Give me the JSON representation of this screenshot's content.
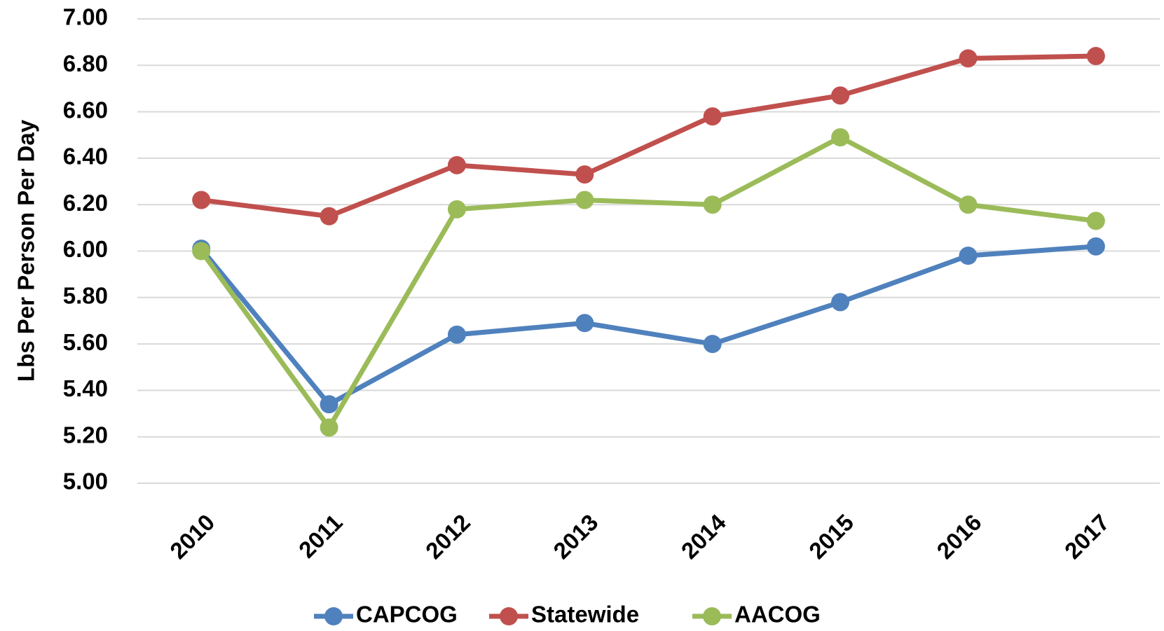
{
  "chart_data": {
    "type": "line",
    "y_label": "Lbs Per Person Per Day",
    "categories": [
      "2010",
      "2011",
      "2012",
      "2013",
      "2014",
      "2015",
      "2016",
      "2017"
    ],
    "series": [
      {
        "name": "CAPCOG",
        "color": "#4f81bd",
        "values": [
          6.01,
          5.34,
          5.64,
          5.69,
          5.6,
          5.78,
          5.98,
          6.02
        ]
      },
      {
        "name": "Statewide",
        "color": "#c0504d",
        "values": [
          6.22,
          6.15,
          6.37,
          6.33,
          6.58,
          6.67,
          6.83,
          6.84
        ]
      },
      {
        "name": "AACOG",
        "color": "#9bbb59",
        "values": [
          6.0,
          5.24,
          6.18,
          6.22,
          6.2,
          6.49,
          6.2,
          6.13
        ]
      }
    ],
    "ylim": [
      5,
      7
    ],
    "yticks": [
      {
        "value": 5,
        "label": "5.00"
      },
      {
        "value": 5.2,
        "label": "5.20"
      },
      {
        "value": 5.4,
        "label": "5.40"
      },
      {
        "value": 5.6,
        "label": "5.60"
      },
      {
        "value": 5.8,
        "label": "5.80"
      },
      {
        "value": 6,
        "label": "6.00"
      },
      {
        "value": 6.2,
        "label": "6.20"
      },
      {
        "value": 6.4,
        "label": "6.40"
      },
      {
        "value": 6.6,
        "label": "6.60"
      },
      {
        "value": 6.8,
        "label": "6.80"
      },
      {
        "value": 7,
        "label": "7.00"
      }
    ],
    "grid": true,
    "legend": "bottom"
  }
}
